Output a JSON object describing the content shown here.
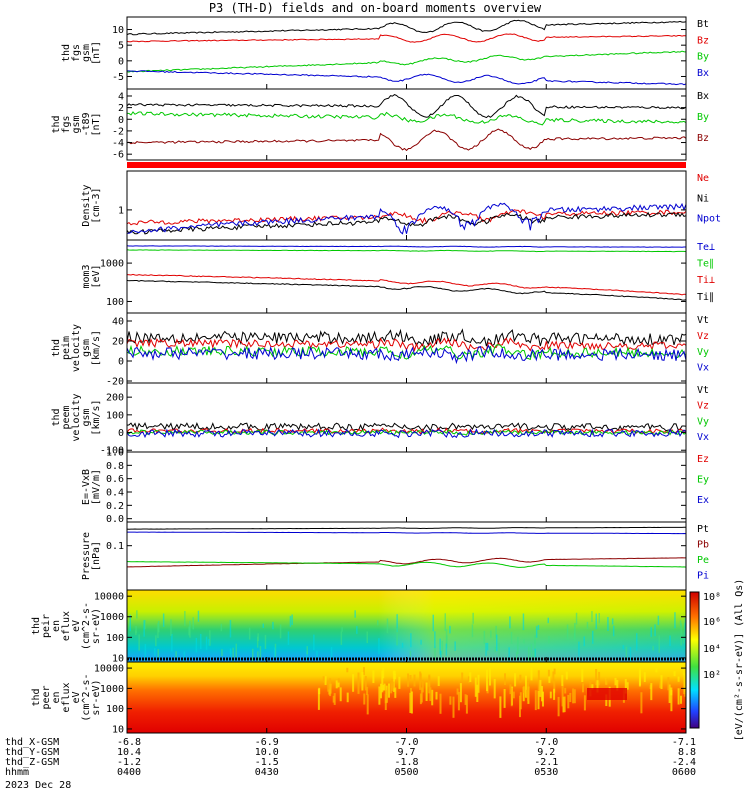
{
  "page": {
    "title": "P3 (TH-D) fields and on-board moments overview"
  },
  "colors": {
    "black": "#000000",
    "red": "#e00000",
    "green": "#00c800",
    "blue": "#0000d0",
    "darkred": "#8b0000"
  },
  "ephemeris": {
    "rows": [
      {
        "label": "thd_X-GSM",
        "values": [
          "-6.8",
          "-6.9",
          "-7.0",
          "-7.0",
          "-7.1"
        ]
      },
      {
        "label": "thd_Y-GSM",
        "values": [
          "10.4",
          "10.0",
          "9.7",
          "9.2",
          "8.8"
        ]
      },
      {
        "label": "thd_Z-GSM",
        "values": [
          "-1.2",
          "-1.5",
          "-1.8",
          "-2.1",
          "-2.4"
        ]
      },
      {
        "label": "hhmm",
        "values": [
          "0400",
          "0430",
          "0500",
          "0530",
          "0600"
        ]
      }
    ],
    "date": "2023 Dec 28"
  },
  "colorbar": {
    "label": "[eV/(cm²-s-sr-eV)] (All Qs)",
    "ticks": [
      "10⁸",
      "10⁶",
      "10⁴",
      "10²"
    ]
  },
  "chart_data": [
    {
      "type": "line",
      "id": "fgs",
      "ylabel": [
        "thd",
        "fgs",
        "gsm",
        "[nT]"
      ],
      "ylim": [
        -9,
        14
      ],
      "yticks": [
        "10",
        "5",
        "0",
        "-5"
      ],
      "ytick_values": [
        10,
        5,
        0,
        -5
      ],
      "legend": [
        "Bt",
        "Bz",
        "By",
        "Bx"
      ],
      "series": [
        {
          "name": "Bt",
          "color": "black",
          "level_start": 8.5,
          "level_end": 12.5,
          "wave": 1.6,
          "noise": 0.2
        },
        {
          "name": "Bz",
          "color": "red",
          "level_start": 6.2,
          "level_end": 8.0,
          "wave": 1.2,
          "noise": 0.15
        },
        {
          "name": "By",
          "color": "green",
          "level_start": -3.5,
          "level_end": 3.0,
          "wave": 0.8,
          "noise": 0.2
        },
        {
          "name": "Bx",
          "color": "blue",
          "level_start": -3.2,
          "level_end": -7.5,
          "wave": 1.2,
          "noise": 0.2
        }
      ]
    },
    {
      "type": "line",
      "id": "fgs_dsl",
      "ylabel": [
        "thd",
        "fgs",
        "gsm",
        "-t89",
        "[nT]"
      ],
      "ylim": [
        -7,
        5.2
      ],
      "yticks": [
        "4",
        "2",
        "0",
        "-2",
        "-4",
        "-6"
      ],
      "ytick_values": [
        4,
        2,
        0,
        -2,
        -4,
        -6
      ],
      "legend": [
        "Bx",
        "By",
        "Bz"
      ],
      "series": [
        {
          "name": "Bx",
          "color": "black",
          "level_start": 2.5,
          "level_end": 2.0,
          "wave": 1.8,
          "noise": 0.2
        },
        {
          "name": "By",
          "color": "green",
          "level_start": 1.0,
          "level_end": -0.5,
          "wave": 0.6,
          "noise": 0.3
        },
        {
          "name": "Bz",
          "color": "darkred",
          "level_start": -4.0,
          "level_end": -3.2,
          "wave": 1.6,
          "noise": 0.2
        }
      ]
    },
    {
      "type": "line",
      "id": "density",
      "scale": "log",
      "ylabel": [
        "Density",
        "[cm-3]"
      ],
      "ylim": [
        0.2,
        8
      ],
      "yticks": [
        "1"
      ],
      "ytick_values": [
        1
      ],
      "legend": [
        "Ne",
        "Ni",
        "Npot"
      ],
      "series": [
        {
          "name": "Ne",
          "color": "red",
          "level_start": 0.5,
          "level_end": 0.9,
          "wave": 0.2,
          "noise": 0.25
        },
        {
          "name": "Ni",
          "color": "black",
          "level_start": 0.3,
          "level_end": 0.8,
          "wave": 0.2,
          "noise": 0.25
        },
        {
          "name": "Npot",
          "color": "blue",
          "level_start": 0.3,
          "level_end": 1.2,
          "wave": 0.5,
          "noise": 0.3
        }
      ]
    },
    {
      "type": "line",
      "id": "temperature",
      "scale": "log",
      "ylabel": [
        "mom3",
        "[eV]"
      ],
      "ylim": [
        50,
        4000
      ],
      "yticks": [
        "1000",
        "100"
      ],
      "ytick_values": [
        1000,
        100
      ],
      "legend": [
        "Te⊥",
        "Te∥",
        "Ti⊥",
        "Ti∥"
      ],
      "series": [
        {
          "name": "Te⊥",
          "color": "blue",
          "level_start": 2800,
          "level_end": 2600,
          "wave": 0.02,
          "noise": 0.02
        },
        {
          "name": "Te∥",
          "color": "green",
          "level_start": 2200,
          "level_end": 2000,
          "wave": 0.02,
          "noise": 0.02
        },
        {
          "name": "Ti⊥",
          "color": "red",
          "level_start": 500,
          "level_end": 150,
          "wave": 0.1,
          "noise": 0.05
        },
        {
          "name": "Ti∥",
          "color": "black",
          "level_start": 350,
          "level_end": 110,
          "wave": 0.1,
          "noise": 0.05
        }
      ]
    },
    {
      "type": "line",
      "id": "peim_velocity",
      "ylabel": [
        "thd",
        "peim",
        "velocity",
        "gsm",
        "[km/s]"
      ],
      "ylim": [
        -22,
        48
      ],
      "yticks": [
        "40",
        "20",
        "0",
        "-20"
      ],
      "ytick_values": [
        40,
        20,
        0,
        -20
      ],
      "legend": [
        "Vt",
        "Vz",
        "Vy",
        "Vx"
      ],
      "series": [
        {
          "name": "Vt",
          "color": "black",
          "level_start": 24,
          "level_end": 22,
          "wave": 3,
          "noise": 6
        },
        {
          "name": "Vz",
          "color": "red",
          "level_start": 18,
          "level_end": 15,
          "wave": 3,
          "noise": 4
        },
        {
          "name": "Vy",
          "color": "green",
          "level_start": 10,
          "level_end": 8,
          "wave": 3,
          "noise": 5
        },
        {
          "name": "Vx",
          "color": "blue",
          "level_start": 8,
          "level_end": 6,
          "wave": 3,
          "noise": 6
        }
      ]
    },
    {
      "type": "line",
      "id": "peem_velocity",
      "ylabel": [
        "thd",
        "peem",
        "velocity",
        "gsm",
        "[km/s]"
      ],
      "ylim": [
        -110,
        280
      ],
      "yticks": [
        "200",
        "100",
        "0",
        "-100"
      ],
      "ytick_values": [
        200,
        100,
        0,
        -100
      ],
      "legend": [
        "Vt",
        "Vz",
        "Vy",
        "Vx"
      ],
      "series": [
        {
          "name": "Vt",
          "color": "black",
          "level_start": 35,
          "level_end": 30,
          "wave": 5,
          "noise": 20
        },
        {
          "name": "Vz",
          "color": "red",
          "level_start": 10,
          "level_end": 8,
          "wave": 4,
          "noise": 12
        },
        {
          "name": "Vy",
          "color": "green",
          "level_start": 2,
          "level_end": 0,
          "wave": 4,
          "noise": 12
        },
        {
          "name": "Vx",
          "color": "blue",
          "level_start": -5,
          "level_end": -3,
          "wave": 4,
          "noise": 20
        }
      ]
    },
    {
      "type": "line",
      "id": "efield",
      "ylabel": [
        "E=-VxB",
        "[mV/m]"
      ],
      "ylim": [
        -0.05,
        1.0
      ],
      "yticks": [
        "1.0",
        "0.8",
        "0.6",
        "0.4",
        "0.2",
        "0.0"
      ],
      "ytick_values": [
        1.0,
        0.8,
        0.6,
        0.4,
        0.2,
        0.0
      ],
      "legend": [
        "Ez",
        "Ey",
        "Ex"
      ],
      "series": []
    },
    {
      "type": "line",
      "id": "pressure",
      "scale": "log",
      "ylabel": [
        "Pressure",
        "[nPa]"
      ],
      "ylim": [
        0.0035,
        0.6
      ],
      "yticks": [
        "0.1"
      ],
      "ytick_values": [
        0.1
      ],
      "legend": [
        "Pt",
        "Pb",
        "Pe",
        "Pi"
      ],
      "series": [
        {
          "name": "Pt",
          "color": "black",
          "level_start": 0.35,
          "level_end": 0.4,
          "wave": 0.02,
          "noise": 0.01
        },
        {
          "name": "Pi",
          "color": "blue",
          "level_start": 0.28,
          "level_end": 0.25,
          "wave": 0.02,
          "noise": 0.01
        },
        {
          "name": "Pb",
          "color": "darkred",
          "level_start": 0.02,
          "level_end": 0.04,
          "wave": 0.15,
          "noise": 0.02
        },
        {
          "name": "Pe",
          "color": "green",
          "level_start": 0.03,
          "level_end": 0.02,
          "wave": 0.15,
          "noise": 0.02
        }
      ]
    },
    {
      "type": "heatmap",
      "id": "peir_en_eflux",
      "ylabel": [
        "thd",
        "peir",
        "en",
        "eflux",
        "eV",
        "(cm^2-s-",
        "sr-eV)"
      ],
      "yticks": [
        "10000",
        "1000",
        "100",
        "10"
      ],
      "ytick_values": [
        10000,
        1000,
        100,
        10
      ]
    },
    {
      "type": "heatmap",
      "id": "peer_en_eflux",
      "ylabel": [
        "thd",
        "peer",
        "en",
        "eflux",
        "eV",
        "(cm^2-s-",
        "sr-eV)"
      ],
      "yticks": [
        "10000",
        "1000",
        "100",
        "10"
      ],
      "ytick_values": [
        10000,
        1000,
        100,
        10
      ]
    }
  ]
}
